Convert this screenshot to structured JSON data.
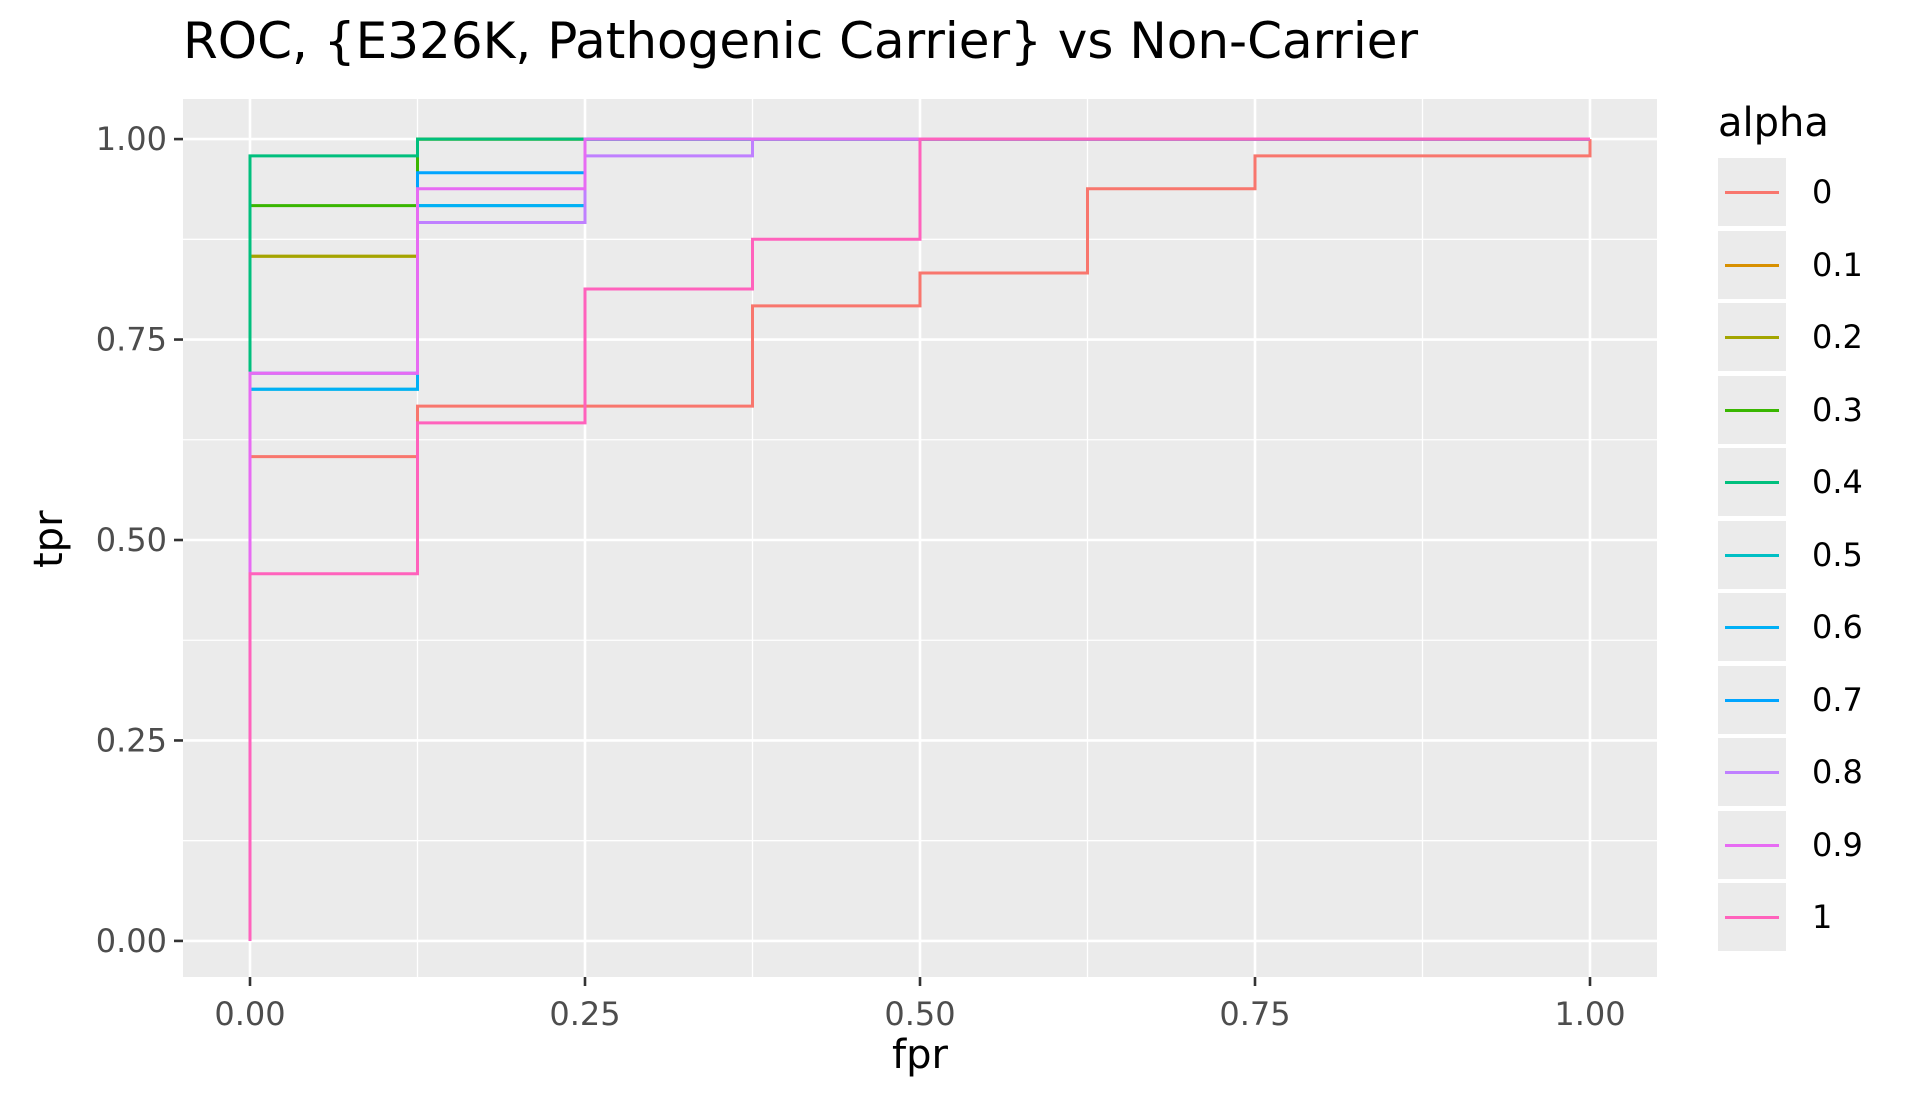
{
  "chart_data": {
    "type": "line",
    "title": "ROC, {E326K, Pathogenic Carrier} vs Non-Carrier",
    "xlabel": "fpr",
    "ylabel": "tpr",
    "xlim": [
      -0.1,
      2.1
    ],
    "ylim": [
      -0.045,
      1.05
    ],
    "x_ticks": [
      0,
      0.25,
      0.5,
      0.75,
      1
    ],
    "x_tick_labels": [
      "0.00",
      "0.25",
      "0.50",
      "0.75",
      "1.00"
    ],
    "y_ticks": [
      0,
      0.25,
      0.5,
      0.75,
      1
    ],
    "y_tick_labels": [
      "0.00",
      "0.25",
      "0.50",
      "0.75",
      "1.00"
    ],
    "grid": true,
    "legend": {
      "title": "alpha",
      "position": "right"
    },
    "series": [
      {
        "name": "0",
        "color": "#f8766d",
        "points": [
          [
            0,
            0
          ],
          [
            0,
            0.604
          ],
          [
            0.125,
            0.604
          ],
          [
            0.125,
            0.667
          ],
          [
            0.375,
            0.667
          ],
          [
            0.375,
            0.792
          ],
          [
            0.5,
            0.792
          ],
          [
            0.5,
            0.833
          ],
          [
            0.625,
            0.833
          ],
          [
            0.625,
            0.938
          ],
          [
            0.75,
            0.938
          ],
          [
            0.75,
            0.979
          ],
          [
            1,
            0.979
          ],
          [
            1,
            1
          ]
        ]
      },
      {
        "name": "0.1",
        "color": "#d89000",
        "points": [
          [
            0,
            0
          ],
          [
            0,
            0.854
          ],
          [
            0.125,
            0.854
          ],
          [
            0.125,
            1
          ],
          [
            1,
            1
          ]
        ]
      },
      {
        "name": "0.2",
        "color": "#a3a500",
        "points": [
          [
            0,
            0
          ],
          [
            0,
            0.854
          ],
          [
            0.125,
            0.854
          ],
          [
            0.125,
            1
          ],
          [
            1,
            1
          ]
        ]
      },
      {
        "name": "0.3",
        "color": "#39b600",
        "points": [
          [
            0,
            0
          ],
          [
            0,
            0.917
          ],
          [
            0.125,
            0.917
          ],
          [
            0.125,
            1
          ],
          [
            1,
            1
          ]
        ]
      },
      {
        "name": "0.4",
        "color": "#00bf7d",
        "points": [
          [
            0,
            0
          ],
          [
            0,
            0.979
          ],
          [
            0.125,
            0.979
          ],
          [
            0.125,
            1
          ],
          [
            1,
            1
          ]
        ]
      },
      {
        "name": "0.5",
        "color": "#00bfc4",
        "points": [
          [
            0,
            0
          ],
          [
            0,
            0.688
          ],
          [
            0.125,
            0.688
          ],
          [
            0.125,
            0.917
          ],
          [
            0.25,
            0.917
          ],
          [
            0.25,
            1
          ],
          [
            1,
            1
          ]
        ]
      },
      {
        "name": "0.6",
        "color": "#00b0f6",
        "points": [
          [
            0,
            0
          ],
          [
            0,
            0.688
          ],
          [
            0.125,
            0.688
          ],
          [
            0.125,
            0.917
          ],
          [
            0.25,
            0.917
          ],
          [
            0.25,
            1
          ],
          [
            1,
            1
          ]
        ]
      },
      {
        "name": "0.7",
        "color": "#00a5ff",
        "points": [
          [
            0,
            0
          ],
          [
            0,
            0.708
          ],
          [
            0.125,
            0.708
          ],
          [
            0.125,
            0.958
          ],
          [
            0.25,
            0.958
          ],
          [
            0.25,
            1
          ],
          [
            1,
            1
          ]
        ]
      },
      {
        "name": "0.8",
        "color": "#bf80ff",
        "points": [
          [
            0,
            0
          ],
          [
            0,
            0.708
          ],
          [
            0.125,
            0.708
          ],
          [
            0.125,
            0.896
          ],
          [
            0.25,
            0.896
          ],
          [
            0.25,
            0.979
          ],
          [
            0.375,
            0.979
          ],
          [
            0.375,
            1
          ],
          [
            1,
            1
          ]
        ]
      },
      {
        "name": "0.9",
        "color": "#e76bf3",
        "points": [
          [
            0,
            0
          ],
          [
            0,
            0.708
          ],
          [
            0.125,
            0.708
          ],
          [
            0.125,
            0.938
          ],
          [
            0.25,
            0.938
          ],
          [
            0.25,
            1
          ],
          [
            1,
            1
          ]
        ]
      },
      {
        "name": "1",
        "color": "#ff62bc",
        "points": [
          [
            0,
            0
          ],
          [
            0,
            0.458
          ],
          [
            0.125,
            0.458
          ],
          [
            0.125,
            0.646
          ],
          [
            0.25,
            0.646
          ],
          [
            0.25,
            0.813
          ],
          [
            0.375,
            0.813
          ],
          [
            0.375,
            0.875
          ],
          [
            0.5,
            0.875
          ],
          [
            0.5,
            1
          ],
          [
            1,
            1
          ]
        ]
      }
    ]
  }
}
